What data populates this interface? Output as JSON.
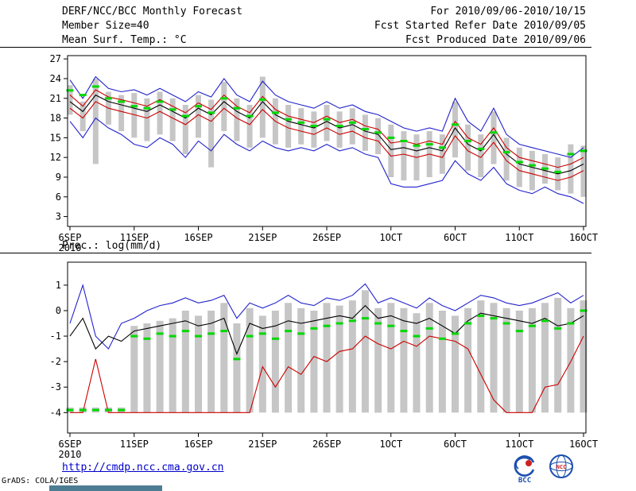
{
  "header": {
    "title": "DERF/NCC/BCC Monthly Forecast",
    "for_range": "For 2010/09/06-2010/10/15",
    "member_size": "Member Size=40",
    "refer_date": "Fcst Started Refer Date 2010/09/05",
    "produced_date": "Fcst Produced Date 2010/09/06"
  },
  "footer": {
    "url": "http://cmdp.ncc.cma.gov.cn",
    "credit": "GrADS: COLA/IGES",
    "logos": [
      "BCC",
      "NCC"
    ]
  },
  "colors": {
    "blue": "#2222cc",
    "red": "#cc0000",
    "black": "#000000",
    "green": "#00d800",
    "gray_bar": "#c6c6c6"
  },
  "chart_data": [
    {
      "type": "line",
      "title": "Mean Surf. Temp.: °C",
      "x_tick_labels": [
        "6SEP",
        "11SEP",
        "16SEP",
        "21SEP",
        "26SEP",
        "1OCT",
        "6OCT",
        "11OCT",
        "16OCT"
      ],
      "x_tick_step": 5,
      "x_year": "2010",
      "ylim": [
        1.5,
        27.5
      ],
      "yticks": [
        3,
        6,
        9,
        12,
        15,
        18,
        21,
        24,
        27
      ],
      "grid": false,
      "legend": "none",
      "bars": {
        "color": "#c6c6c6",
        "low": [
          18.5,
          16.0,
          11.0,
          17.0,
          16.0,
          15.0,
          14.5,
          15.5,
          14.5,
          12.5,
          15.0,
          10.5,
          16.0,
          14.5,
          13.5,
          15.0,
          14.0,
          13.5,
          14.0,
          13.5,
          14.5,
          13.5,
          14.0,
          13.0,
          12.5,
          9.0,
          8.5,
          8.5,
          9.0,
          9.5,
          12.0,
          10.0,
          9.0,
          11.0,
          8.5,
          7.5,
          7.0,
          8.0,
          7.0,
          6.5,
          6.0
        ],
        "high": [
          23.0,
          20.5,
          24.0,
          22.0,
          21.5,
          21.8,
          21.0,
          22.0,
          21.0,
          20.0,
          21.5,
          20.8,
          23.5,
          21.0,
          20.0,
          24.3,
          21.0,
          20.0,
          19.5,
          19.0,
          20.0,
          19.0,
          19.5,
          18.5,
          18.0,
          17.0,
          16.0,
          15.5,
          16.0,
          15.5,
          20.5,
          17.0,
          15.5,
          19.0,
          15.0,
          13.5,
          13.0,
          12.5,
          12.0,
          14.0,
          13.8
        ]
      },
      "markers": {
        "color": "#00d800",
        "values": [
          22.2,
          21.5,
          22.8,
          21.0,
          20.5,
          19.8,
          19.5,
          20.5,
          19.3,
          18.3,
          19.8,
          18.8,
          21.0,
          19.5,
          18.3,
          20.8,
          18.8,
          17.8,
          17.3,
          16.8,
          17.8,
          16.8,
          17.3,
          16.3,
          15.8,
          15.0,
          14.5,
          13.8,
          14.0,
          13.5,
          17.0,
          14.5,
          13.3,
          15.8,
          12.8,
          11.3,
          10.8,
          10.3,
          9.8,
          12.5,
          13.0
        ]
      },
      "series": [
        {
          "name": "ensemble-max",
          "color": "#2222cc",
          "values": [
            23.8,
            21.0,
            24.3,
            22.5,
            22.0,
            22.3,
            21.5,
            22.5,
            21.5,
            20.5,
            22.0,
            21.2,
            24.0,
            21.5,
            20.5,
            23.6,
            21.5,
            20.5,
            20.0,
            19.5,
            20.5,
            19.5,
            20.0,
            19.0,
            18.5,
            17.5,
            16.5,
            16.0,
            16.5,
            16.0,
            21.0,
            17.5,
            16.0,
            19.5,
            15.5,
            14.0,
            13.5,
            13.0,
            12.5,
            12.0,
            13.5
          ]
        },
        {
          "name": "upper-quartile",
          "color": "#cc0000",
          "values": [
            21.5,
            19.8,
            22.3,
            21.2,
            20.8,
            20.3,
            19.8,
            20.8,
            19.8,
            18.8,
            20.3,
            19.3,
            21.5,
            19.8,
            18.8,
            21.3,
            19.3,
            18.3,
            17.8,
            17.3,
            18.3,
            17.3,
            17.8,
            16.8,
            16.3,
            14.2,
            14.5,
            14.0,
            14.5,
            14.0,
            17.5,
            15.0,
            14.0,
            16.5,
            13.5,
            12.0,
            11.5,
            11.0,
            10.5,
            11.0,
            12.0
          ]
        },
        {
          "name": "ensemble-mean",
          "color": "#000000",
          "values": [
            20.5,
            19.0,
            21.5,
            20.5,
            20.0,
            19.5,
            19.0,
            20.0,
            19.0,
            18.0,
            19.5,
            18.5,
            20.5,
            19.0,
            18.0,
            20.5,
            18.5,
            17.5,
            17.0,
            16.5,
            17.5,
            16.5,
            17.0,
            16.0,
            15.5,
            13.2,
            13.5,
            13.0,
            13.5,
            13.0,
            16.5,
            14.0,
            13.0,
            15.5,
            12.5,
            11.0,
            10.5,
            10.0,
            9.5,
            10.0,
            11.0
          ]
        },
        {
          "name": "lower-quartile",
          "color": "#cc0000",
          "values": [
            19.5,
            18.0,
            20.5,
            19.5,
            19.0,
            18.5,
            18.0,
            19.0,
            18.0,
            17.0,
            18.5,
            17.5,
            19.5,
            18.0,
            17.0,
            19.3,
            17.5,
            16.5,
            16.0,
            15.5,
            16.5,
            15.5,
            16.0,
            15.0,
            14.5,
            12.2,
            12.5,
            12.0,
            12.5,
            12.0,
            15.3,
            13.0,
            12.0,
            14.3,
            11.5,
            10.0,
            9.5,
            9.0,
            8.5,
            9.0,
            10.0
          ]
        },
        {
          "name": "ensemble-min",
          "color": "#2222cc",
          "values": [
            17.5,
            15.0,
            18.0,
            16.5,
            15.5,
            14.0,
            13.5,
            15.0,
            14.0,
            12.0,
            14.5,
            13.0,
            15.5,
            14.0,
            13.0,
            14.5,
            13.5,
            13.0,
            13.5,
            13.0,
            14.0,
            13.0,
            13.5,
            12.5,
            12.0,
            8.0,
            7.5,
            7.5,
            8.0,
            8.5,
            11.5,
            9.5,
            8.5,
            10.5,
            8.0,
            7.0,
            6.5,
            7.5,
            6.5,
            6.0,
            5.0
          ]
        }
      ]
    },
    {
      "type": "line",
      "title": "Prec.: log(mm/d)",
      "x_tick_labels": [
        "6SEP",
        "11SEP",
        "16SEP",
        "21SEP",
        "26SEP",
        "1OCT",
        "6OCT",
        "11OCT",
        "16OCT"
      ],
      "x_tick_step": 5,
      "x_year": "2010",
      "ylim": [
        -4.8,
        1.9
      ],
      "yticks": [
        -4,
        -3,
        -2,
        -1,
        0,
        1
      ],
      "grid": false,
      "legend": "none",
      "bars": {
        "color": "#c6c6c6",
        "low": [
          -4.0,
          -4.0,
          -4.0,
          -4.0,
          -4.0,
          -4.0,
          -4.0,
          -4.0,
          -4.0,
          -4.0,
          -4.0,
          -4.0,
          -4.0,
          -4.0,
          -4.0,
          -4.0,
          -4.0,
          -4.0,
          -4.0,
          -4.0,
          -4.0,
          -4.0,
          -4.0,
          -4.0,
          -4.0,
          -4.0,
          -4.0,
          -4.0,
          -4.0,
          -4.0,
          -4.0,
          -4.0,
          -4.0,
          -4.0,
          -4.0,
          -4.0,
          -4.0,
          -4.0,
          -4.0,
          -4.0,
          -4.0
        ],
        "high": [
          -3.8,
          -3.8,
          -3.8,
          -3.8,
          -3.8,
          -0.6,
          -0.5,
          -0.4,
          -0.3,
          0.0,
          -0.2,
          0.0,
          0.3,
          -0.5,
          0.1,
          -0.2,
          0.0,
          0.3,
          0.1,
          0.0,
          0.3,
          0.2,
          0.4,
          0.8,
          0.1,
          0.3,
          0.1,
          -0.1,
          0.3,
          0.0,
          -0.2,
          0.1,
          0.4,
          0.3,
          0.1,
          0.0,
          0.1,
          0.3,
          0.5,
          0.1,
          0.4
        ]
      },
      "markers": {
        "color": "#00d800",
        "values": [
          -3.9,
          -3.9,
          -3.9,
          -3.9,
          -3.9,
          -1.0,
          -1.1,
          -0.9,
          -1.0,
          -0.8,
          -1.0,
          -0.9,
          -0.8,
          -1.9,
          -1.0,
          -0.9,
          -1.1,
          -0.8,
          -0.9,
          -0.7,
          -0.6,
          -0.5,
          -0.4,
          -0.3,
          -0.5,
          -0.6,
          -0.8,
          -1.0,
          -0.7,
          -1.1,
          -0.9,
          -0.5,
          -0.2,
          -0.3,
          -0.5,
          -0.8,
          -0.6,
          -0.4,
          -0.7,
          -0.5,
          0.0
        ]
      },
      "series": [
        {
          "name": "ensemble-max",
          "color": "#2222cc",
          "values": [
            -0.5,
            1.0,
            -1.0,
            -1.5,
            -0.5,
            -0.3,
            0.0,
            0.2,
            0.3,
            0.5,
            0.3,
            0.4,
            0.6,
            -0.3,
            0.3,
            0.1,
            0.3,
            0.6,
            0.3,
            0.2,
            0.5,
            0.4,
            0.6,
            1.05,
            0.3,
            0.5,
            0.3,
            0.1,
            0.5,
            0.2,
            0.0,
            0.3,
            0.6,
            0.5,
            0.3,
            0.2,
            0.3,
            0.5,
            0.7,
            0.3,
            0.6
          ]
        },
        {
          "name": "ensemble-mean",
          "color": "#000000",
          "values": [
            -1.0,
            -0.3,
            -1.5,
            -1.0,
            -1.2,
            -0.8,
            -0.7,
            -0.6,
            -0.5,
            -0.4,
            -0.6,
            -0.5,
            -0.3,
            -1.7,
            -0.5,
            -0.7,
            -0.6,
            -0.4,
            -0.5,
            -0.4,
            -0.3,
            -0.2,
            -0.3,
            0.2,
            -0.3,
            -0.2,
            -0.4,
            -0.5,
            -0.3,
            -0.6,
            -0.9,
            -0.4,
            -0.1,
            -0.2,
            -0.3,
            -0.4,
            -0.5,
            -0.3,
            -0.6,
            -0.5,
            -0.2
          ]
        },
        {
          "name": "ensemble-min",
          "color": "#cc0000",
          "values": [
            -4.0,
            -4.0,
            -1.9,
            -4.0,
            -4.0,
            -4.0,
            -4.0,
            -4.0,
            -4.0,
            -4.0,
            -4.0,
            -4.0,
            -4.0,
            -4.0,
            -4.0,
            -2.2,
            -3.0,
            -2.2,
            -2.5,
            -1.8,
            -2.0,
            -1.6,
            -1.5,
            -1.0,
            -1.3,
            -1.5,
            -1.2,
            -1.4,
            -1.0,
            -1.1,
            -1.2,
            -1.5,
            -2.5,
            -3.5,
            -4.0,
            -4.0,
            -4.0,
            -3.0,
            -2.9,
            -2.0,
            -1.0
          ]
        }
      ]
    }
  ]
}
